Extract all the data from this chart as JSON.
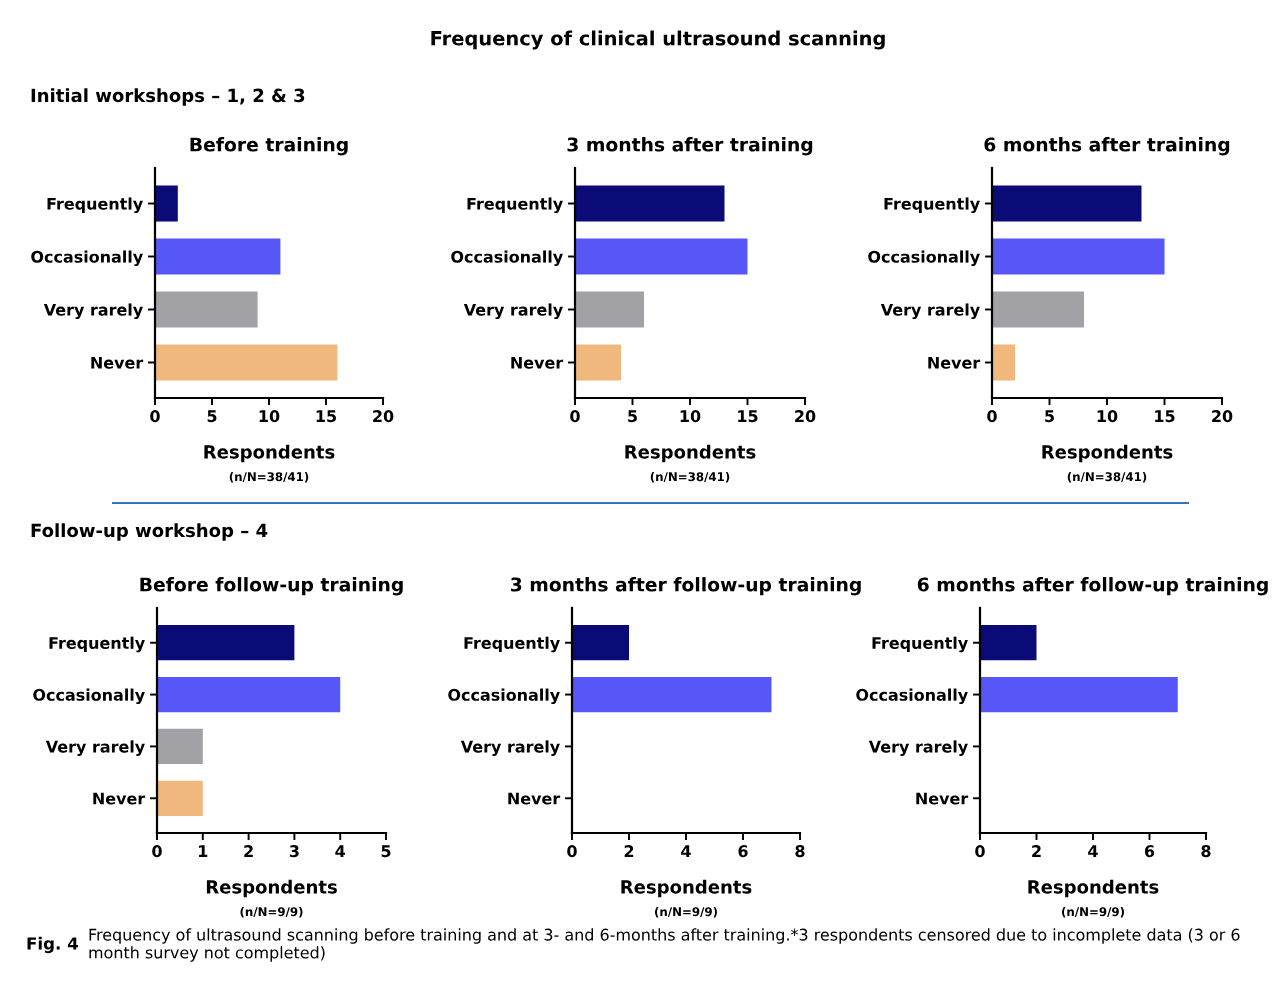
{
  "chart_data": [
    {
      "type": "bar",
      "orientation": "horizontal",
      "title": "Before training",
      "xlabel": "Respondents",
      "categories": [
        "Frequently",
        "Occasionally",
        "Very rarely",
        "Never"
      ],
      "values": [
        2,
        11,
        9,
        16
      ],
      "colors": [
        "#0b0b78",
        "#5757f7",
        "#a1a1a6",
        "#f0b87d"
      ],
      "xlim": [
        0,
        20
      ],
      "xticks": [
        0,
        5,
        10,
        15,
        20
      ],
      "grid": false,
      "legend": false,
      "annotations": [
        "(n/N=38/41)",
        "Frequency of clinical ultrasound scanning",
        "Initial workshops – 1, 2 & 3"
      ]
    },
    {
      "type": "bar",
      "orientation": "horizontal",
      "title": "3 months after training",
      "xlabel": "Respondents",
      "categories": [
        "Frequently",
        "Occasionally",
        "Very rarely",
        "Never"
      ],
      "values": [
        13,
        15,
        6,
        4
      ],
      "colors": [
        "#0b0b78",
        "#5757f7",
        "#a1a1a6",
        "#f0b87d"
      ],
      "xlim": [
        0,
        20
      ],
      "xticks": [
        0,
        5,
        10,
        15,
        20
      ],
      "grid": false,
      "legend": false,
      "annotations": [
        "(n/N=38/41)"
      ]
    },
    {
      "type": "bar",
      "orientation": "horizontal",
      "title": "6 months after training",
      "xlabel": "Respondents",
      "categories": [
        "Frequently",
        "Occasionally",
        "Very rarely",
        "Never"
      ],
      "values": [
        13,
        15,
        8,
        2
      ],
      "colors": [
        "#0b0b78",
        "#5757f7",
        "#a1a1a6",
        "#f0b87d"
      ],
      "xlim": [
        0,
        20
      ],
      "xticks": [
        0,
        5,
        10,
        15,
        20
      ],
      "grid": false,
      "legend": false,
      "annotations": [
        "(n/N=38/41)"
      ]
    },
    {
      "type": "bar",
      "orientation": "horizontal",
      "title": "Before follow-up training",
      "xlabel": "Respondents",
      "categories": [
        "Frequently",
        "Occasionally",
        "Very rarely",
        "Never"
      ],
      "values": [
        3,
        4,
        1,
        1
      ],
      "colors": [
        "#0b0b78",
        "#5757f7",
        "#a1a1a6",
        "#f0b87d"
      ],
      "xlim": [
        0,
        5
      ],
      "xticks": [
        0,
        1,
        2,
        3,
        4,
        5
      ],
      "grid": false,
      "legend": false,
      "annotations": [
        "(n/N=9/9)",
        "Follow-up workshop – 4"
      ]
    },
    {
      "type": "bar",
      "orientation": "horizontal",
      "title": "3 months after follow-up training",
      "xlabel": "Respondents",
      "categories": [
        "Frequently",
        "Occasionally",
        "Very rarely",
        "Never"
      ],
      "values": [
        2,
        7,
        0,
        0
      ],
      "colors": [
        "#0b0b78",
        "#5757f7",
        "#a1a1a6",
        "#f0b87d"
      ],
      "xlim": [
        0,
        8
      ],
      "xticks": [
        0,
        2,
        4,
        6,
        8
      ],
      "grid": false,
      "legend": false,
      "annotations": [
        "(n/N=9/9)"
      ]
    },
    {
      "type": "bar",
      "orientation": "horizontal",
      "title": "6 months after follow-up training",
      "xlabel": "Respondents",
      "categories": [
        "Frequently",
        "Occasionally",
        "Very rarely",
        "Never"
      ],
      "values": [
        2,
        7,
        0,
        0
      ],
      "colors": [
        "#0b0b78",
        "#5757f7",
        "#a1a1a6",
        "#f0b87d"
      ],
      "xlim": [
        0,
        8
      ],
      "xticks": [
        0,
        2,
        4,
        6,
        8
      ],
      "grid": false,
      "legend": false,
      "annotations": [
        "(n/N=9/9)",
        "Fig. 4",
        "Frequency of ultrasound scanning before training and at 3- and 6-months after training.*3 respondents censored due to incomplete data (3 or 6 month survey not completed)"
      ]
    }
  ]
}
